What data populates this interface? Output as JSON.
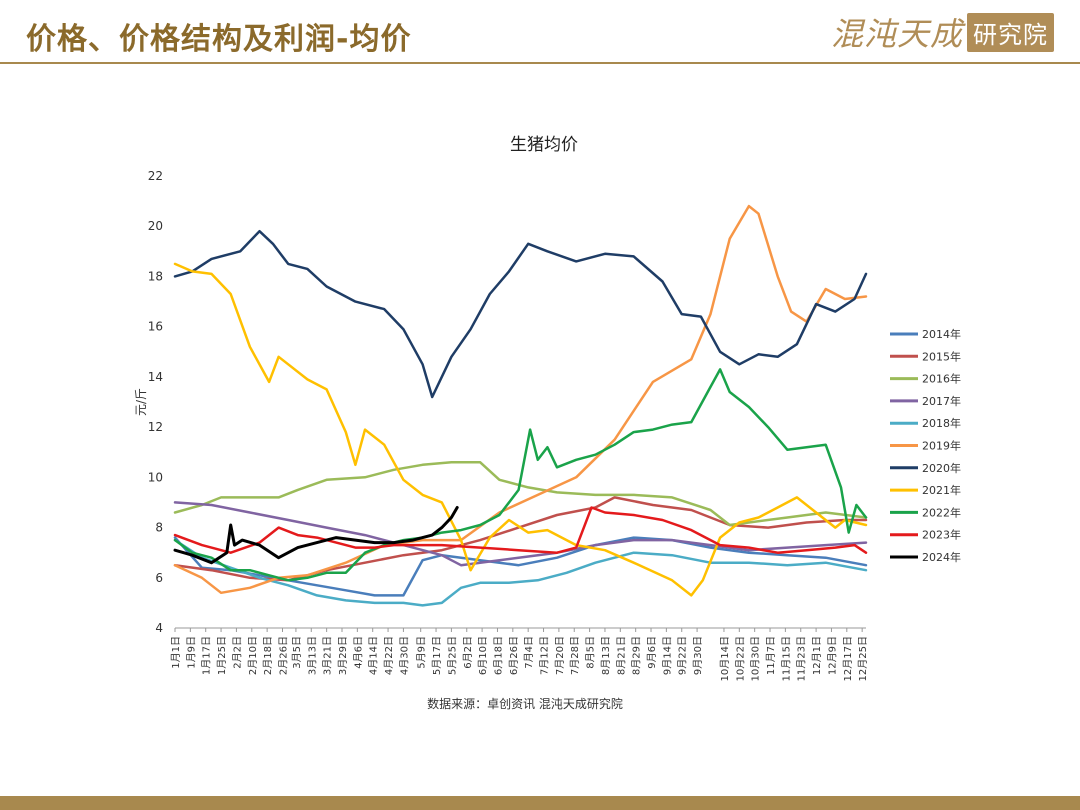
{
  "header": {
    "title": "价格、价格结构及利润-均价",
    "brand_main": "混沌天成",
    "brand_seal": "研究院"
  },
  "colors": {
    "accent": "#a8894e",
    "title": "#8b6a2b"
  },
  "source_note": "数据来源：卓创资讯 混沌天成研究院",
  "chart_data": {
    "type": "line",
    "title": "生猪均价",
    "ylabel": "元/斤",
    "xlabel": "",
    "ylim": [
      4,
      22
    ],
    "yticks": [
      4,
      6,
      8,
      10,
      12,
      14,
      16,
      18,
      20,
      22
    ],
    "x_domain": [
      1,
      361
    ],
    "x_ticks": [
      {
        "label": "1月1日",
        "x": 1
      },
      {
        "label": "1月9日",
        "x": 9
      },
      {
        "label": "1月17日",
        "x": 17
      },
      {
        "label": "1月25日",
        "x": 25
      },
      {
        "label": "2月2日",
        "x": 33
      },
      {
        "label": "2月10日",
        "x": 41
      },
      {
        "label": "2月18日",
        "x": 49
      },
      {
        "label": "2月26日",
        "x": 57
      },
      {
        "label": "3月5日",
        "x": 64
      },
      {
        "label": "3月13日",
        "x": 72
      },
      {
        "label": "3月21日",
        "x": 80
      },
      {
        "label": "3月29日",
        "x": 88
      },
      {
        "label": "4月6日",
        "x": 96
      },
      {
        "label": "4月14日",
        "x": 104
      },
      {
        "label": "4月22日",
        "x": 112
      },
      {
        "label": "4月30日",
        "x": 120
      },
      {
        "label": "5月9日",
        "x": 129
      },
      {
        "label": "5月17日",
        "x": 137
      },
      {
        "label": "5月25日",
        "x": 145
      },
      {
        "label": "6月2日",
        "x": 153
      },
      {
        "label": "6月10日",
        "x": 161
      },
      {
        "label": "6月18日",
        "x": 169
      },
      {
        "label": "6月26日",
        "x": 177
      },
      {
        "label": "7月4日",
        "x": 185
      },
      {
        "label": "7月12日",
        "x": 193
      },
      {
        "label": "7月20日",
        "x": 201
      },
      {
        "label": "7月28日",
        "x": 209
      },
      {
        "label": "8月5日",
        "x": 217
      },
      {
        "label": "8月13日",
        "x": 225
      },
      {
        "label": "8月21日",
        "x": 233
      },
      {
        "label": "8月29日",
        "x": 241
      },
      {
        "label": "9月6日",
        "x": 249
      },
      {
        "label": "9月14日",
        "x": 257
      },
      {
        "label": "9月22日",
        "x": 265
      },
      {
        "label": "9月30日",
        "x": 273
      },
      {
        "label": "10月14日",
        "x": 287
      },
      {
        "label": "10月22日",
        "x": 295
      },
      {
        "label": "10月30日",
        "x": 303
      },
      {
        "label": "11月7日",
        "x": 311
      },
      {
        "label": "11月15日",
        "x": 319
      },
      {
        "label": "11月23日",
        "x": 327
      },
      {
        "label": "12月1日",
        "x": 335
      },
      {
        "label": "12月9日",
        "x": 343
      },
      {
        "label": "12月17日",
        "x": 351
      },
      {
        "label": "12月25日",
        "x": 359
      }
    ],
    "legend_position": "right",
    "grid": false,
    "series": [
      {
        "name": "2014年",
        "color": "#4a7ebb",
        "x": [
          1,
          15,
          30,
          45,
          60,
          75,
          90,
          105,
          120,
          130,
          140,
          160,
          180,
          200,
          220,
          240,
          260,
          280,
          300,
          320,
          340,
          361
        ],
        "y": [
          7.6,
          6.4,
          6.3,
          6.1,
          5.9,
          5.7,
          5.5,
          5.3,
          5.3,
          6.7,
          6.9,
          6.7,
          6.5,
          6.8,
          7.3,
          7.6,
          7.5,
          7.2,
          7.0,
          6.9,
          6.8,
          6.5
        ]
      },
      {
        "name": "2015年",
        "color": "#c0504d",
        "x": [
          1,
          20,
          40,
          60,
          80,
          100,
          120,
          140,
          160,
          180,
          200,
          220,
          230,
          250,
          270,
          290,
          310,
          330,
          350,
          361
        ],
        "y": [
          6.5,
          6.3,
          6.0,
          5.9,
          6.3,
          6.6,
          6.9,
          7.1,
          7.5,
          8.0,
          8.5,
          8.8,
          9.2,
          8.9,
          8.7,
          8.1,
          8.0,
          8.2,
          8.3,
          8.3
        ]
      },
      {
        "name": "2016年",
        "color": "#9bbb59",
        "x": [
          1,
          15,
          25,
          40,
          55,
          65,
          80,
          100,
          115,
          130,
          145,
          160,
          170,
          185,
          200,
          220,
          240,
          260,
          280,
          290,
          300,
          320,
          340,
          361
        ],
        "y": [
          8.6,
          8.9,
          9.2,
          9.2,
          9.2,
          9.5,
          9.9,
          10.0,
          10.3,
          10.5,
          10.6,
          10.6,
          9.9,
          9.6,
          9.4,
          9.3,
          9.3,
          9.2,
          8.7,
          8.1,
          8.2,
          8.4,
          8.6,
          8.4
        ]
      },
      {
        "name": "2017年",
        "color": "#8064a2",
        "x": [
          1,
          20,
          40,
          60,
          80,
          100,
          120,
          140,
          150,
          160,
          180,
          200,
          220,
          240,
          260,
          280,
          300,
          320,
          340,
          361
        ],
        "y": [
          9.0,
          8.9,
          8.6,
          8.3,
          8.0,
          7.7,
          7.3,
          6.9,
          6.5,
          6.6,
          6.8,
          7.0,
          7.3,
          7.5,
          7.5,
          7.3,
          7.1,
          7.2,
          7.3,
          7.4
        ]
      },
      {
        "name": "2018年",
        "color": "#4bacc6",
        "x": [
          1,
          15,
          30,
          45,
          60,
          75,
          90,
          105,
          120,
          130,
          140,
          150,
          160,
          175,
          190,
          205,
          220,
          240,
          260,
          280,
          300,
          320,
          340,
          361
        ],
        "y": [
          7.5,
          6.8,
          6.4,
          6.0,
          5.7,
          5.3,
          5.1,
          5.0,
          5.0,
          4.9,
          5.0,
          5.6,
          5.8,
          5.8,
          5.9,
          6.2,
          6.6,
          7.0,
          6.9,
          6.6,
          6.6,
          6.5,
          6.6,
          6.3
        ]
      },
      {
        "name": "2019年",
        "color": "#f79646",
        "x": [
          1,
          15,
          25,
          40,
          55,
          70,
          90,
          110,
          130,
          150,
          170,
          190,
          210,
          230,
          250,
          270,
          280,
          290,
          300,
          305,
          315,
          322,
          330,
          340,
          350,
          361
        ],
        "y": [
          6.5,
          6.0,
          5.4,
          5.6,
          6.0,
          6.1,
          6.6,
          7.3,
          7.5,
          7.5,
          8.6,
          9.3,
          10.0,
          11.5,
          13.8,
          14.7,
          16.5,
          19.5,
          20.8,
          20.5,
          18.0,
          16.6,
          16.2,
          17.5,
          17.1,
          17.2
        ]
      },
      {
        "name": "2020年",
        "color": "#1f3d66",
        "x": [
          1,
          10,
          20,
          35,
          45,
          52,
          60,
          70,
          80,
          95,
          110,
          120,
          130,
          135,
          145,
          155,
          165,
          175,
          185,
          195,
          210,
          225,
          240,
          255,
          265,
          275,
          285,
          295,
          305,
          315,
          325,
          335,
          345,
          355,
          361
        ],
        "y": [
          18.0,
          18.2,
          18.7,
          19.0,
          19.8,
          19.3,
          18.5,
          18.3,
          17.6,
          17.0,
          16.7,
          15.9,
          14.5,
          13.2,
          14.8,
          15.9,
          17.3,
          18.2,
          19.3,
          19.0,
          18.6,
          18.9,
          18.8,
          17.8,
          16.5,
          16.4,
          15.0,
          14.5,
          14.9,
          14.8,
          15.3,
          16.9,
          16.6,
          17.1,
          18.1
        ]
      },
      {
        "name": "2021年",
        "color": "#ffc000",
        "x": [
          1,
          10,
          20,
          30,
          40,
          50,
          55,
          60,
          70,
          80,
          90,
          95,
          100,
          110,
          120,
          130,
          140,
          150,
          155,
          165,
          175,
          185,
          195,
          210,
          225,
          240,
          260,
          270,
          276,
          285,
          295,
          305,
          315,
          325,
          335,
          345,
          350,
          361
        ],
        "y": [
          18.5,
          18.2,
          18.1,
          17.3,
          15.2,
          13.8,
          14.8,
          14.5,
          13.9,
          13.5,
          11.8,
          10.5,
          11.9,
          11.3,
          9.9,
          9.3,
          9.0,
          7.5,
          6.3,
          7.6,
          8.3,
          7.8,
          7.9,
          7.3,
          7.1,
          6.6,
          5.9,
          5.3,
          5.9,
          7.6,
          8.2,
          8.4,
          8.8,
          9.2,
          8.6,
          8.0,
          8.3,
          8.1
        ]
      },
      {
        "name": "2022年",
        "color": "#1aa34a",
        "x": [
          1,
          10,
          20,
          30,
          40,
          50,
          60,
          70,
          80,
          90,
          100,
          110,
          120,
          130,
          140,
          150,
          160,
          170,
          180,
          186,
          190,
          195,
          200,
          210,
          220,
          230,
          240,
          250,
          260,
          270,
          280,
          285,
          290,
          300,
          310,
          320,
          330,
          340,
          348,
          352,
          356,
          361
        ],
        "y": [
          7.5,
          7.0,
          6.8,
          6.3,
          6.3,
          6.1,
          5.9,
          6.0,
          6.2,
          6.2,
          7.0,
          7.3,
          7.5,
          7.6,
          7.8,
          7.9,
          8.1,
          8.5,
          9.5,
          11.9,
          10.7,
          11.2,
          10.4,
          10.7,
          10.9,
          11.3,
          11.8,
          11.9,
          12.1,
          12.2,
          13.6,
          14.3,
          13.4,
          12.8,
          12.0,
          11.1,
          11.2,
          11.3,
          9.6,
          7.8,
          8.9,
          8.4
        ]
      },
      {
        "name": "2023年",
        "color": "#e41a1c",
        "x": [
          1,
          15,
          30,
          45,
          55,
          65,
          75,
          85,
          95,
          105,
          115,
          125,
          140,
          160,
          180,
          200,
          210,
          218,
          225,
          240,
          255,
          270,
          285,
          300,
          315,
          330,
          345,
          355,
          361
        ],
        "y": [
          7.7,
          7.3,
          7.0,
          7.4,
          8.0,
          7.7,
          7.6,
          7.4,
          7.2,
          7.2,
          7.3,
          7.3,
          7.3,
          7.2,
          7.1,
          7.0,
          7.2,
          8.8,
          8.6,
          8.5,
          8.3,
          7.9,
          7.3,
          7.2,
          7.0,
          7.1,
          7.2,
          7.3,
          7.0
        ]
      },
      {
        "name": "2024年",
        "color": "#000000",
        "x": [
          1,
          10,
          20,
          28,
          30,
          32,
          36,
          45,
          55,
          65,
          75,
          85,
          95,
          105,
          115,
          125,
          135,
          140,
          145,
          148
        ],
        "y": [
          7.1,
          6.9,
          6.6,
          7.0,
          8.1,
          7.3,
          7.5,
          7.3,
          6.8,
          7.2,
          7.4,
          7.6,
          7.5,
          7.4,
          7.4,
          7.5,
          7.7,
          8.0,
          8.4,
          8.8
        ]
      }
    ]
  }
}
